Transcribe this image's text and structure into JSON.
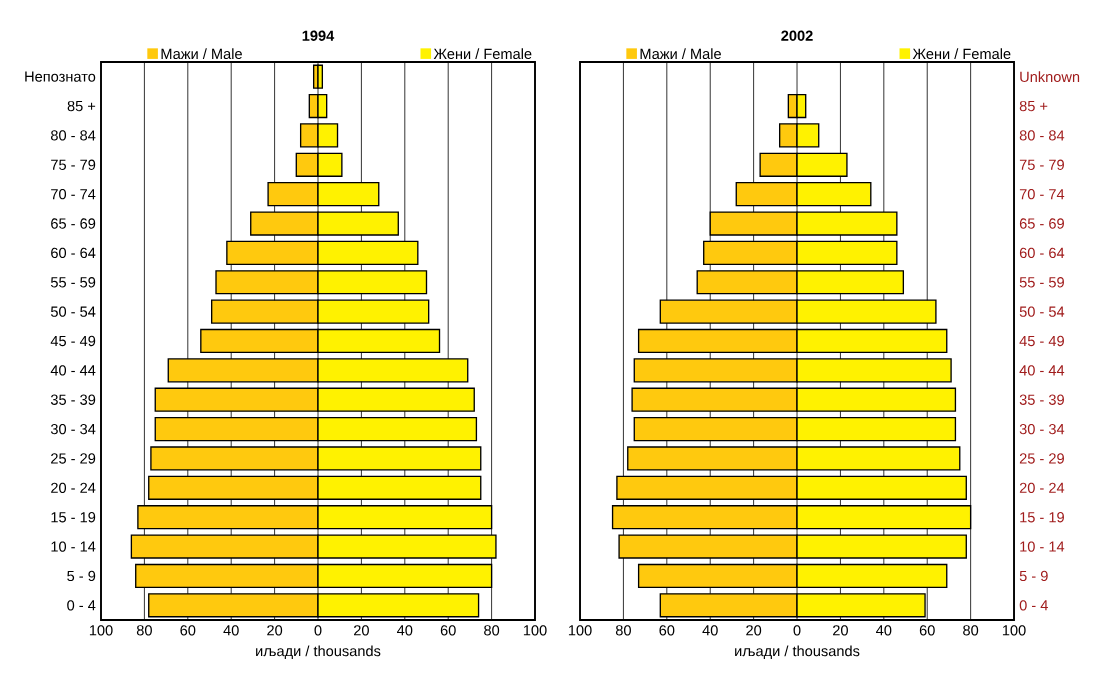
{
  "chart_data": [
    {
      "type": "bar",
      "orientation": "horizontal",
      "stacked": true,
      "legend": "top",
      "title": "1994",
      "xlabel": "иљади / thousands",
      "grid": "x",
      "categories": [
        "Непознато",
        "85 +",
        "80 - 84",
        "75 - 79",
        "70 - 74",
        "65 - 69",
        "60 - 64",
        "55 - 59",
        "50 - 54",
        "45 - 49",
        "40 - 44",
        "35 - 39",
        "30 - 34",
        "25 - 29",
        "20 - 24",
        "15 - 19",
        "10 - 14",
        "5 - 9",
        "0 - 4"
      ],
      "series": [
        {
          "name": "Мажи / Male",
          "color": "#ffc90e",
          "values": [
            -2,
            -4,
            -8,
            -10,
            -23,
            -31,
            -42,
            -47,
            -49,
            -54,
            -69,
            -75,
            -75,
            -77,
            -78,
            -83,
            -86,
            -84,
            -78
          ]
        },
        {
          "name": "Жени / Female",
          "color": "#fff200",
          "values": [
            2,
            4,
            9,
            11,
            28,
            37,
            46,
            50,
            51,
            56,
            69,
            72,
            73,
            75,
            75,
            80,
            82,
            80,
            74
          ]
        }
      ],
      "xlim": [
        -100,
        100
      ],
      "xticks": [
        {
          "value": -100,
          "label": "100"
        },
        {
          "value": -80,
          "label": "80"
        },
        {
          "value": -60,
          "label": "60"
        },
        {
          "value": -40,
          "label": "40"
        },
        {
          "value": -20,
          "label": "20"
        },
        0,
        20,
        40,
        60,
        80,
        100
      ]
    },
    {
      "type": "bar",
      "orientation": "horizontal",
      "stacked": true,
      "legend": "top",
      "title": "2002",
      "xlabel": "иљади / thousands",
      "grid": "x",
      "categories": [
        "Unknown",
        "85 +",
        "80 - 84",
        "75 - 79",
        "70 - 74",
        "65 - 69",
        "60 - 64",
        "55 - 59",
        "50 - 54",
        "45 - 49",
        "40 - 44",
        "35 - 39",
        "30 - 34",
        "25 - 29",
        "20 - 24",
        "15 - 19",
        "10 - 14",
        "5 - 9",
        "0 - 4"
      ],
      "series": [
        {
          "name": "Мажи / Male",
          "color": "#ffc90e",
          "values": [
            null,
            -4,
            -8,
            -17,
            -28,
            -40,
            -43,
            -46,
            -63,
            -73,
            -75,
            -76,
            -75,
            -78,
            -83,
            -85,
            -82,
            -73,
            -63
          ]
        },
        {
          "name": "Жени / Female",
          "color": "#fff200",
          "values": [
            null,
            4,
            10,
            23,
            34,
            46,
            46,
            49,
            64,
            69,
            71,
            73,
            73,
            75,
            78,
            80,
            78,
            69,
            59
          ]
        }
      ],
      "xlim": [
        -100,
        100
      ],
      "xticks": [
        {
          "value": -100,
          "label": "100"
        },
        {
          "value": -80,
          "label": "80"
        },
        {
          "value": -60,
          "label": "60"
        },
        {
          "value": -40,
          "label": "40"
        },
        {
          "value": -20,
          "label": "20"
        },
        0,
        20,
        40,
        60,
        80,
        100
      ]
    }
  ]
}
